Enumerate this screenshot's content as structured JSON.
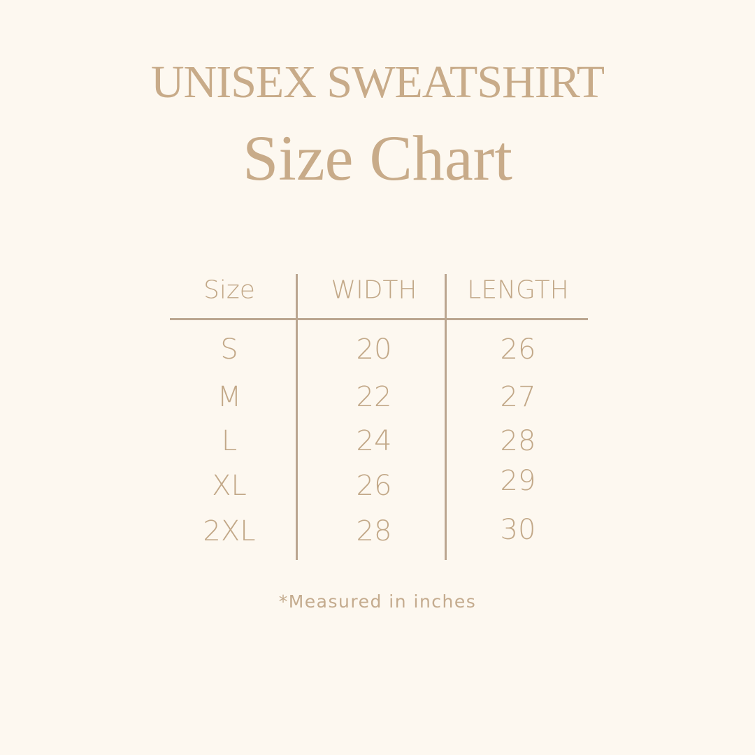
{
  "title": "UNISEX SWEATSHIRT",
  "subtitle": "Size Chart",
  "table": {
    "headers": [
      "Size",
      "WIDTH",
      "LENGTH"
    ],
    "rows": [
      [
        "S",
        "20",
        "26"
      ],
      [
        "M",
        "22",
        "27"
      ],
      [
        "L",
        "24",
        "28"
      ],
      [
        "XL",
        "26",
        "29"
      ],
      [
        "2XL",
        "28",
        "30"
      ]
    ]
  },
  "footnote": "*Measured in inches",
  "colors": {
    "background": "#fdf8f0",
    "text": "#c4a888",
    "lines": "#bba690"
  }
}
